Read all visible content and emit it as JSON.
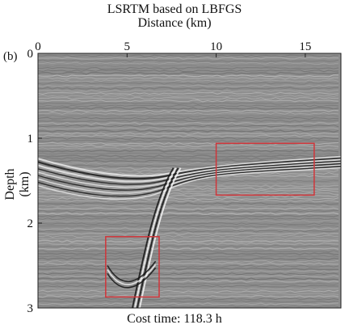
{
  "chart_data": {
    "type": "heatmap",
    "title": "LSRTM based on LBFGS",
    "xlabel": "Distance (km)",
    "ylabel": "Depth (km)",
    "panel_label": "(b)",
    "footer": "Cost time: 118.3 h",
    "x_ticks": [
      "0",
      "5",
      "10",
      "15"
    ],
    "x_tick_values": [
      0,
      5,
      10,
      15
    ],
    "y_ticks": [
      "0",
      "1",
      "2",
      "3"
    ],
    "y_tick_values": [
      0,
      1,
      2,
      3
    ],
    "xlim": [
      0,
      17
    ],
    "ylim": [
      0,
      3
    ],
    "x_axis_position": "top",
    "colormap": "grayscale seismic image",
    "highlight_boxes": [
      {
        "x": [
          10.0,
          15.5
        ],
        "y": [
          1.06,
          1.67
        ],
        "color": "#d0353a"
      },
      {
        "x": [
          3.8,
          6.8
        ],
        "y": [
          2.16,
          2.87
        ],
        "color": "#d0353a"
      }
    ]
  }
}
